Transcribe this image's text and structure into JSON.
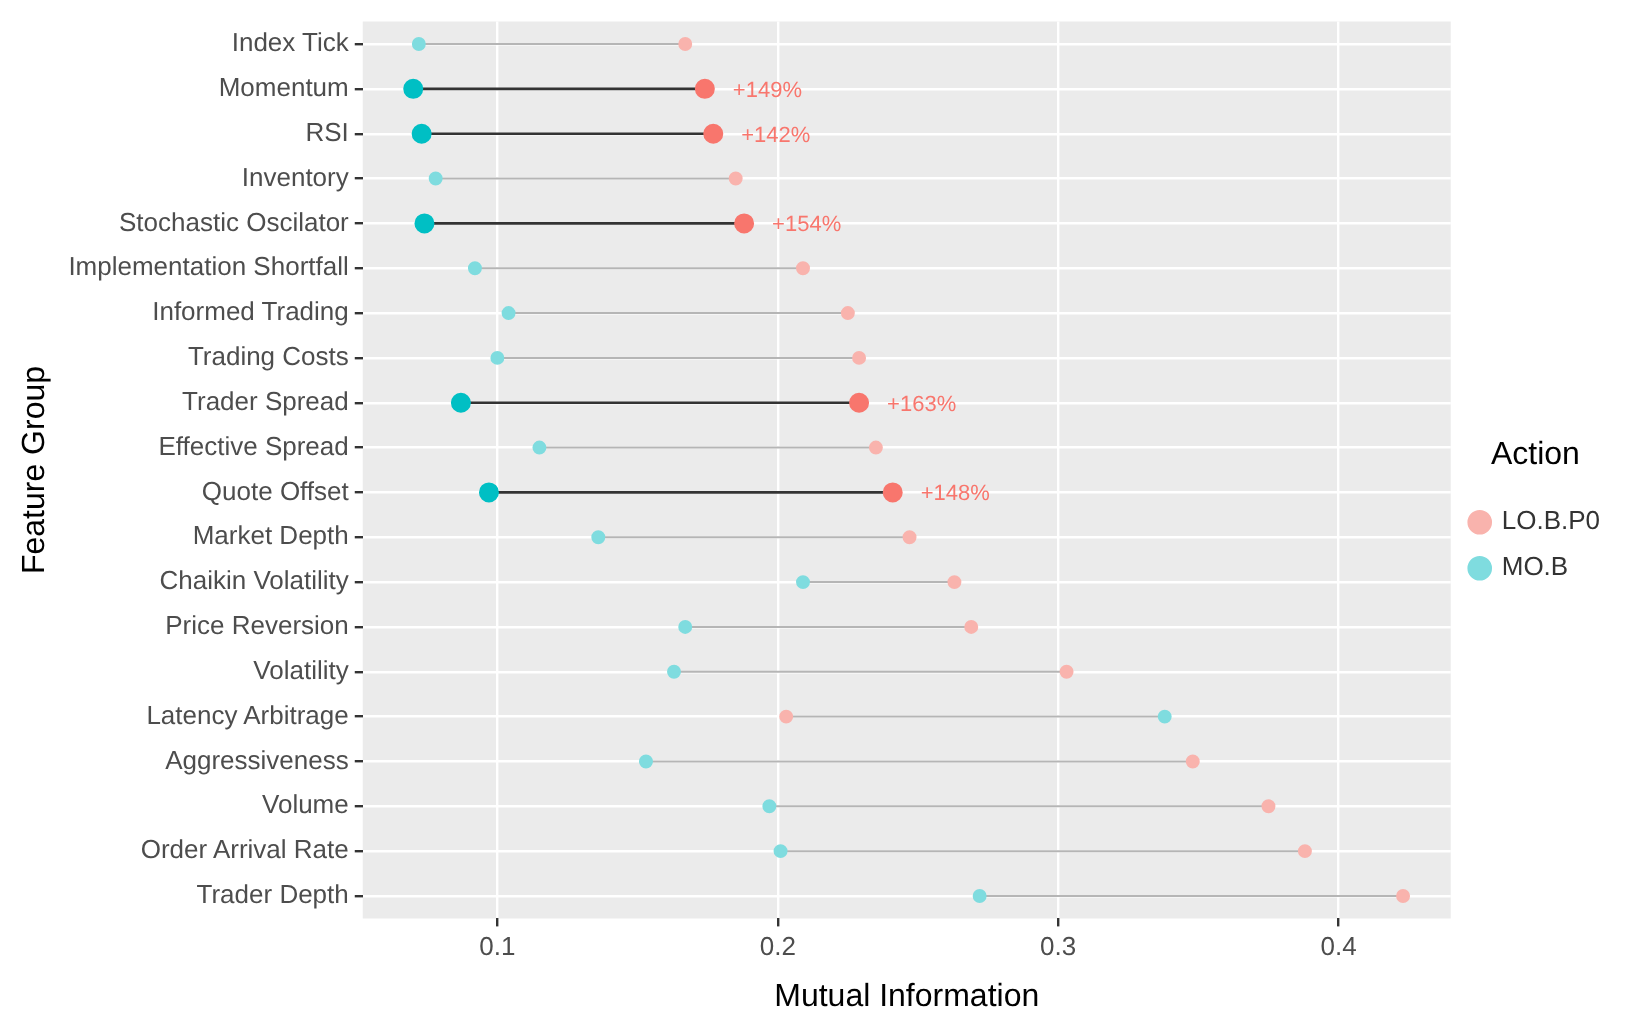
{
  "chart_data": {
    "type": "scatter",
    "orientation": "horizontal",
    "xlabel": "Mutual Information",
    "ylabel": "Feature Group",
    "legend_title": "Action",
    "legend": "right",
    "grid": true,
    "marker": "circle",
    "categories": [
      "Index Tick",
      "Momentum",
      "RSI",
      "Inventory",
      "Stochastic Oscilator",
      "Implementation Shortfall",
      "Informed Trading",
      "Trading Costs",
      "Trader Spread",
      "Effective Spread",
      "Quote Offset",
      "Market Depth",
      "Chaikin Volatility",
      "Price Reversion",
      "Volatility",
      "Latency Arbitrage",
      "Aggressiveness",
      "Volume",
      "Order Arrival Rate",
      "Trader Depth"
    ],
    "xlim": [
      0.052,
      0.44
    ],
    "xticks": [
      0.1,
      0.2,
      0.3,
      0.4
    ],
    "series": [
      {
        "name": "LO.B.P0",
        "color": "#f8766d",
        "values": [
          0.167,
          0.174,
          0.177,
          0.185,
          0.188,
          0.209,
          0.225,
          0.229,
          0.229,
          0.235,
          0.241,
          0.247,
          0.263,
          0.269,
          0.303,
          0.203,
          0.348,
          0.375,
          0.388,
          0.423
        ],
        "colors": [
          "#f9b3ad",
          "#f8766d",
          "#f8766d",
          "#f9b3ad",
          "#f8766d",
          "#f9b3ad",
          "#f9b3ad",
          "#f9b3ad",
          "#f8766d",
          "#f9b3ad",
          "#f8766d",
          "#f9b3ad",
          "#f9b3ad",
          "#f9b3ad",
          "#f9b3ad",
          "#f9b3ad",
          "#f9b3ad",
          "#f9b3ad",
          "#f9b3ad",
          "#f9b3ad"
        ],
        "sizes": [
          0.44,
          1,
          1,
          0.44,
          1,
          0.44,
          0.44,
          0.44,
          1,
          0.44,
          1,
          0.44,
          0.44,
          0.44,
          0.44,
          0.44,
          0.44,
          0.44,
          0.44,
          0.44
        ]
      },
      {
        "name": "MO.B",
        "color": "#00bfc4",
        "values": [
          0.072,
          0.07,
          0.073,
          0.078,
          0.074,
          0.092,
          0.104,
          0.1,
          0.087,
          0.115,
          0.097,
          0.136,
          0.209,
          0.167,
          0.163,
          0.338,
          0.153,
          0.197,
          0.201,
          0.272
        ],
        "colors": [
          "#7fdcdf",
          "#00bfc4",
          "#00bfc4",
          "#7fdcdf",
          "#00bfc4",
          "#7fdcdf",
          "#7fdcdf",
          "#7fdcdf",
          "#00bfc4",
          "#7fdcdf",
          "#00bfc4",
          "#7fdcdf",
          "#7fdcdf",
          "#7fdcdf",
          "#7fdcdf",
          "#7fdcdf",
          "#7fdcdf",
          "#7fdcdf",
          "#7fdcdf",
          "#7fdcdf"
        ],
        "sizes": [
          0.44,
          1,
          1,
          0.44,
          1,
          0.44,
          0.44,
          0.44,
          1,
          0.44,
          1,
          0.44,
          0.44,
          0.44,
          0.44,
          0.44,
          0.44,
          0.44,
          0.44,
          0.44
        ]
      }
    ],
    "annotations": [
      {
        "text": "+149%",
        "x": 0.174,
        "y": "Momentum"
      },
      {
        "text": "+142%",
        "x": 0.177,
        "y": "RSI"
      },
      {
        "text": "+154%",
        "x": 0.188,
        "y": "Stochastic Oscilator"
      },
      {
        "text": "+163%",
        "x": 0.229,
        "y": "Trader Spread"
      },
      {
        "text": "+148%",
        "x": 0.241,
        "y": "Quote Offset"
      }
    ]
  }
}
